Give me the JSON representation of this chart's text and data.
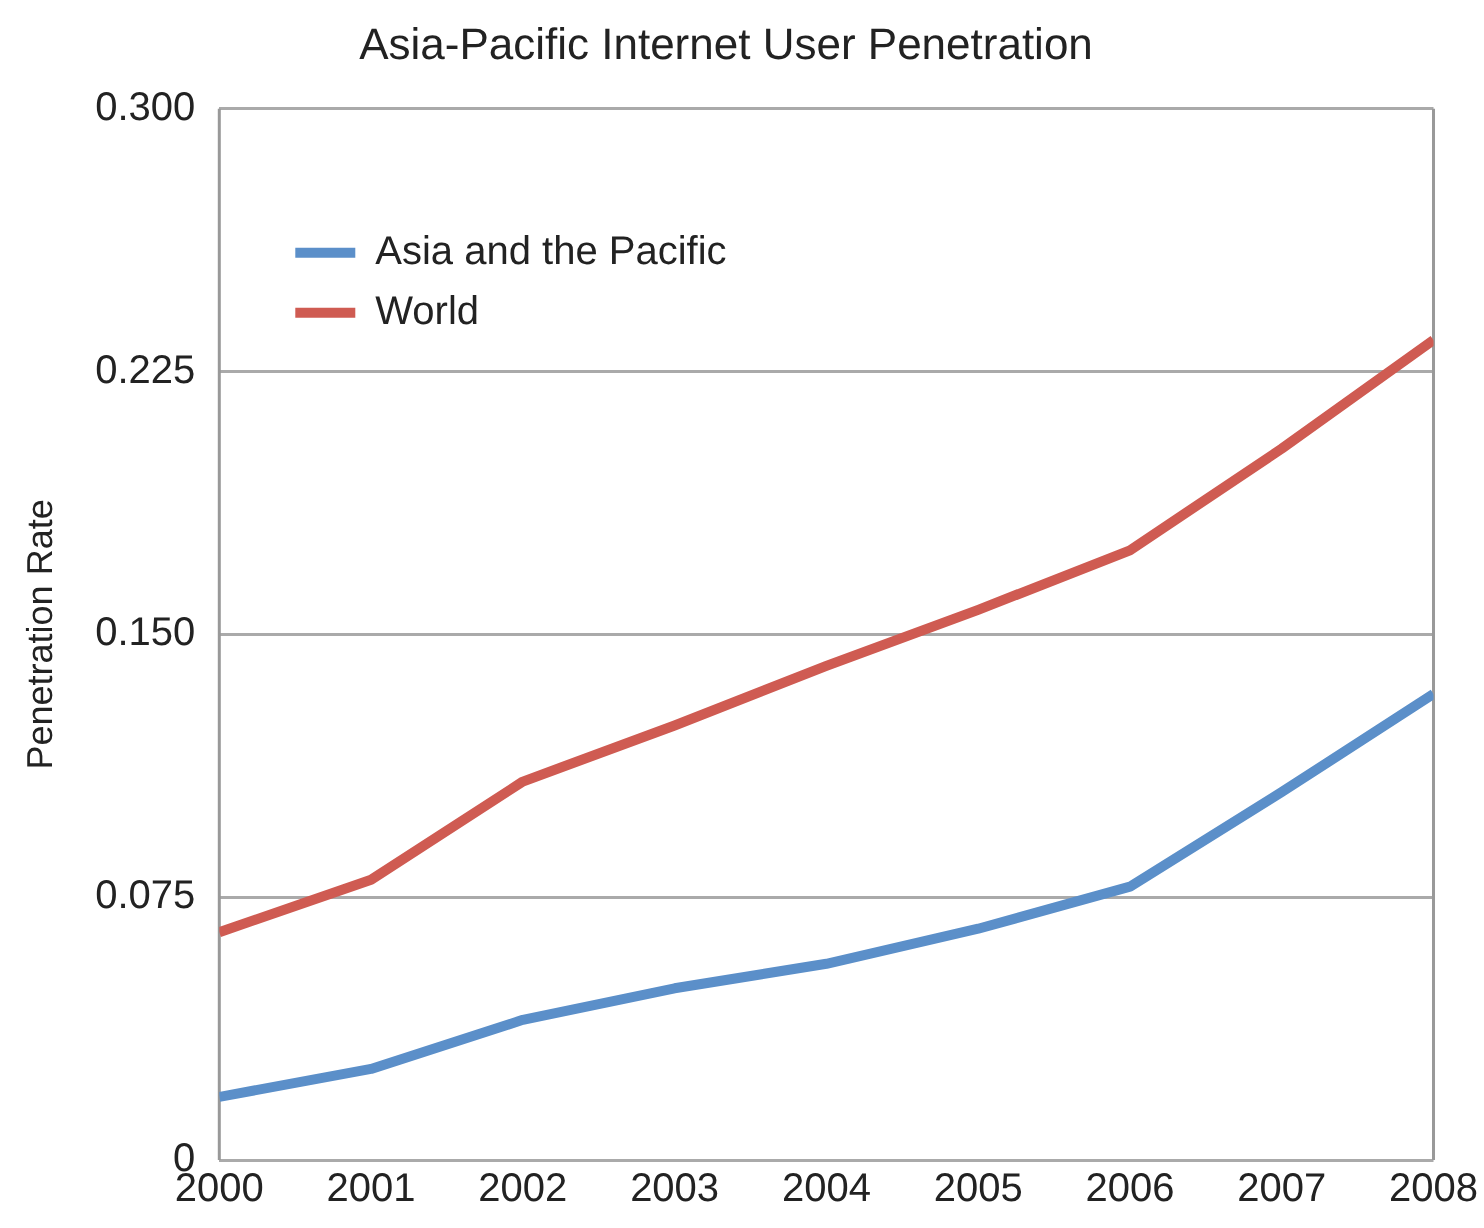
{
  "chart_data": {
    "type": "line",
    "title": "Asia-Pacific Internet User Penetration",
    "ylabel": "Penetration Rate",
    "x": [
      2000,
      2001,
      2002,
      2003,
      2004,
      2005,
      2006,
      2007,
      2008
    ],
    "series": [
      {
        "name": "Asia and the Pacific",
        "color": "#5b8fc9",
        "values": [
          0.018,
          0.026,
          0.04,
          0.049,
          0.056,
          0.066,
          0.078,
          0.105,
          0.133
        ]
      },
      {
        "name": "World",
        "color": "#cf5b52",
        "values": [
          0.065,
          0.08,
          0.108,
          0.124,
          0.141,
          0.157,
          0.174,
          0.203,
          0.234
        ]
      }
    ],
    "xlim": [
      2000,
      2008
    ],
    "xticks": [
      2000,
      2001,
      2002,
      2003,
      2004,
      2005,
      2006,
      2007,
      2008
    ],
    "ylim": [
      0,
      0.3
    ],
    "yticks": [
      {
        "value": 0,
        "label": "0"
      },
      {
        "value": 0.075,
        "label": "0.075"
      },
      {
        "value": 0.15,
        "label": "0.150"
      },
      {
        "value": 0.225,
        "label": "0.225"
      },
      {
        "value": 0.3,
        "label": "0.300"
      }
    ],
    "grid": "y",
    "legend": "top left",
    "marker": "none",
    "line_style": "solid"
  }
}
